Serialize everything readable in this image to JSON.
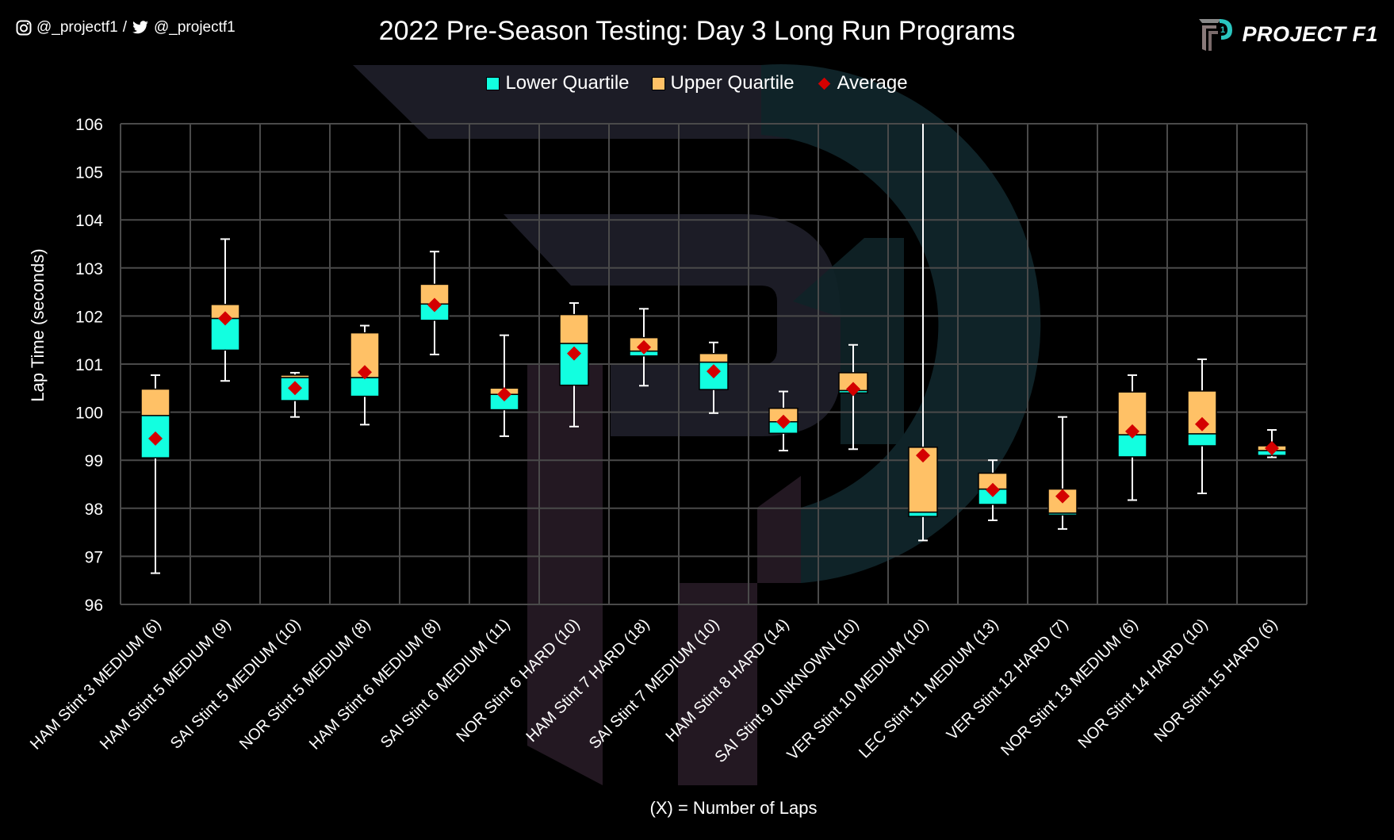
{
  "header": {
    "instagram_handle": "@_projectf1",
    "separator": "/",
    "twitter_handle": "@_projectf1",
    "brand_name": "PROJECT F1"
  },
  "colors": {
    "background": "#000000",
    "lower_quartile": "#12ffe0",
    "upper_quartile": "#ffc166",
    "average": "#d40000",
    "grid": "#4a4a4a",
    "whisker": "#ffffff",
    "watermark_dark": "#1c1c26",
    "watermark_teal": "#0f2328",
    "watermark_maroon": "#231822"
  },
  "chart_data": {
    "type": "box",
    "title": "2022 Pre-Season Testing: Day 3 Long Run Programs",
    "xlabel": "(X) = Number of Laps",
    "ylabel": "Lap Time (seconds)",
    "ylim": [
      96,
      106
    ],
    "yticks": [
      96,
      97,
      98,
      99,
      100,
      101,
      102,
      103,
      104,
      105,
      106
    ],
    "grid": true,
    "legend_position": "top-center",
    "legend": [
      {
        "key": "lower_quartile",
        "label": "Lower Quartile"
      },
      {
        "key": "upper_quartile",
        "label": "Upper Quartile"
      },
      {
        "key": "average",
        "label": "Average"
      }
    ],
    "categories": [
      "HAM Stint 3 MEDIUM (6)",
      "HAM Stint 5 MEDIUM (9)",
      "SAI Stint 5 MEDIUM (10)",
      "NOR Stint 5 MEDIUM (8)",
      "HAM Stint 6 MEDIUM (8)",
      "SAI Stint 6 MEDIUM (11)",
      "NOR Stint 6 HARD (10)",
      "HAM Stint 7 HARD (18)",
      "SAI Stint 7 MEDIUM (10)",
      "HAM Stint 8 HARD (14)",
      "SAI Stint 9 UNKNOWN (10)",
      "VER Stint 10 MEDIUM (10)",
      "LEC Stint 11 MEDIUM (13)",
      "VER Stint 12 HARD (7)",
      "NOR Stint 13 MEDIUM (6)",
      "NOR Stint 14 HARD (10)",
      "NOR Stint 15 HARD (6)"
    ],
    "boxes": [
      {
        "min": 96.65,
        "q1": 99.05,
        "median": 99.93,
        "q3": 100.48,
        "max": 100.77,
        "average": 99.45
      },
      {
        "min": 100.65,
        "q1": 101.29,
        "median": 101.95,
        "q3": 102.24,
        "max": 103.6,
        "average": 101.95
      },
      {
        "min": 99.9,
        "q1": 100.24,
        "median": 100.72,
        "q3": 100.77,
        "max": 100.82,
        "average": 100.5
      },
      {
        "min": 99.74,
        "q1": 100.33,
        "median": 100.72,
        "q3": 101.65,
        "max": 101.8,
        "average": 100.83
      },
      {
        "min": 101.2,
        "q1": 101.91,
        "median": 102.25,
        "q3": 102.66,
        "max": 103.34,
        "average": 102.23
      },
      {
        "min": 99.5,
        "q1": 100.05,
        "median": 100.37,
        "q3": 100.5,
        "max": 101.6,
        "average": 100.37
      },
      {
        "min": 99.7,
        "q1": 100.56,
        "median": 101.43,
        "q3": 102.03,
        "max": 102.27,
        "average": 101.22
      },
      {
        "min": 100.55,
        "q1": 101.17,
        "median": 101.27,
        "q3": 101.55,
        "max": 102.15,
        "average": 101.35
      },
      {
        "min": 99.98,
        "q1": 100.47,
        "median": 101.04,
        "q3": 101.22,
        "max": 101.45,
        "average": 100.85
      },
      {
        "min": 99.2,
        "q1": 99.56,
        "median": 99.8,
        "q3": 100.08,
        "max": 100.43,
        "average": 99.8
      },
      {
        "min": 99.23,
        "q1": 100.4,
        "median": 100.45,
        "q3": 100.82,
        "max": 101.4,
        "average": 100.48
      },
      {
        "min": 97.33,
        "q1": 97.83,
        "median": 97.92,
        "q3": 99.27,
        "max": 106.0,
        "average": 99.1
      },
      {
        "min": 97.75,
        "q1": 98.08,
        "median": 98.4,
        "q3": 98.73,
        "max": 99.0,
        "average": 98.38
      },
      {
        "min": 97.57,
        "q1": 97.86,
        "median": 97.9,
        "q3": 98.4,
        "max": 99.9,
        "average": 98.25
      },
      {
        "min": 98.17,
        "q1": 99.07,
        "median": 99.53,
        "q3": 100.42,
        "max": 100.77,
        "average": 99.6
      },
      {
        "min": 98.31,
        "q1": 99.3,
        "median": 99.55,
        "q3": 100.44,
        "max": 101.1,
        "average": 99.75
      },
      {
        "min": 99.06,
        "q1": 99.1,
        "median": 99.2,
        "q3": 99.3,
        "max": 99.63,
        "average": 99.25
      }
    ]
  }
}
